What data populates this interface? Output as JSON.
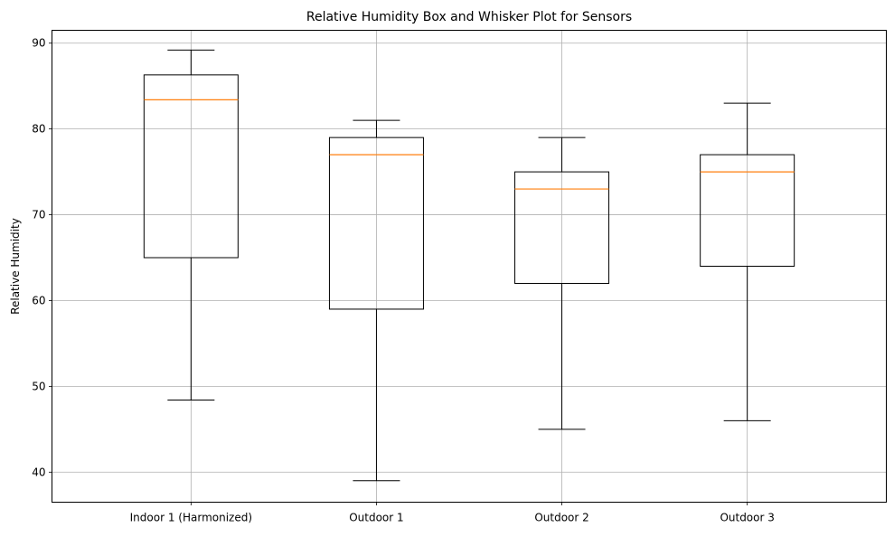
{
  "chart_data": {
    "type": "box",
    "title": "Relative Humidity Box and Whisker Plot for Sensors",
    "xlabel": "",
    "ylabel": "Relative Humidity",
    "ylim": [
      36.5,
      91.5
    ],
    "yticks": [
      40,
      50,
      60,
      70,
      80,
      90
    ],
    "ytick_labels": [
      "40",
      "50",
      "60",
      "70",
      "80",
      "90"
    ],
    "grid": true,
    "categories": [
      "Indoor 1 (Harmonized)",
      "Outdoor 1",
      "Outdoor 2",
      "Outdoor 3"
    ],
    "boxes": [
      {
        "whisker_low": 48.4,
        "q1": 65.0,
        "median": 83.4,
        "q3": 86.3,
        "whisker_high": 89.2
      },
      {
        "whisker_low": 39.0,
        "q1": 59.0,
        "median": 77.0,
        "q3": 79.0,
        "whisker_high": 81.0
      },
      {
        "whisker_low": 45.0,
        "q1": 62.0,
        "median": 73.0,
        "q3": 75.0,
        "whisker_high": 79.0
      },
      {
        "whisker_low": 46.0,
        "q1": 64.0,
        "median": 75.0,
        "q3": 77.0,
        "whisker_high": 83.0
      }
    ],
    "colors": {
      "box": "#000000",
      "median": "#ff7f0e",
      "grid": "#b0b0b0"
    }
  }
}
